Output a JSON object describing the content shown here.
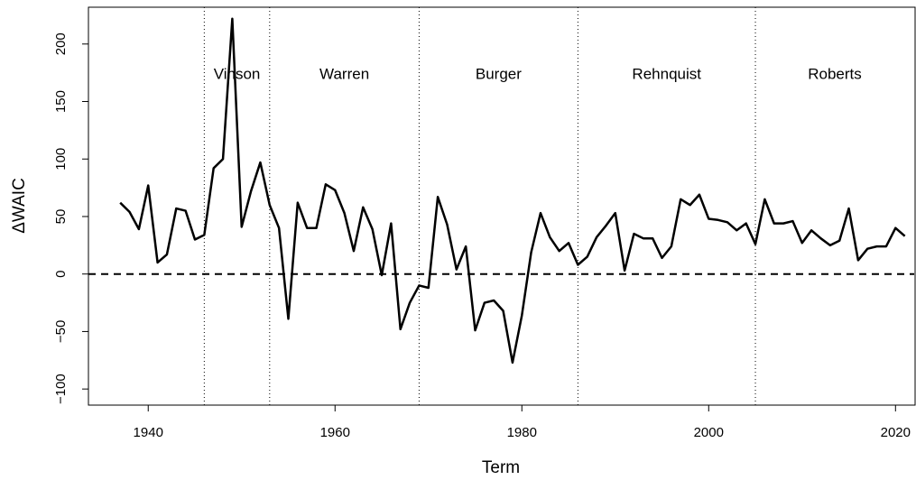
{
  "chart_data": {
    "type": "line",
    "x_label": "Term",
    "y_label": "ΔWAIC",
    "x": [
      1937,
      1938,
      1939,
      1940,
      1941,
      1942,
      1943,
      1944,
      1945,
      1946,
      1947,
      1948,
      1949,
      1950,
      1951,
      1952,
      1953,
      1954,
      1955,
      1956,
      1957,
      1958,
      1959,
      1960,
      1961,
      1962,
      1963,
      1964,
      1965,
      1966,
      1967,
      1968,
      1969,
      1970,
      1971,
      1972,
      1973,
      1974,
      1975,
      1976,
      1977,
      1978,
      1979,
      1980,
      1981,
      1982,
      1983,
      1984,
      1985,
      1986,
      1987,
      1988,
      1989,
      1990,
      1991,
      1992,
      1993,
      1994,
      1995,
      1996,
      1997,
      1998,
      1999,
      2000,
      2001,
      2002,
      2003,
      2004,
      2005,
      2006,
      2007,
      2008,
      2009,
      2010,
      2011,
      2012,
      2013,
      2014,
      2015,
      2016,
      2017,
      2018,
      2019,
      2020,
      2021
    ],
    "series": [
      {
        "color": "#000000",
        "values": [
          62,
          54,
          39,
          77,
          10,
          17,
          57,
          55,
          30,
          34,
          92,
          100,
          222,
          41,
          72,
          97,
          60,
          40,
          -39,
          62,
          40,
          40,
          78,
          73,
          53,
          20,
          58,
          39,
          -1,
          44,
          -48,
          -25,
          -10,
          -12,
          67,
          43,
          4,
          24,
          -49,
          -25,
          -23,
          -32,
          -77,
          -36,
          19,
          53,
          32,
          20,
          27,
          8,
          15,
          32,
          42,
          53,
          3,
          35,
          31,
          31,
          14,
          24,
          65,
          60,
          69,
          48,
          47,
          45,
          38,
          44,
          26,
          65,
          44,
          44,
          46,
          27,
          38,
          31,
          25,
          29,
          57,
          12,
          22,
          24,
          24,
          40,
          33
        ]
      }
    ],
    "reference_line": 0,
    "eras": [
      {
        "name": "Vinson",
        "start": 1946
      },
      {
        "name": "Warren",
        "start": 1953
      },
      {
        "name": "Burger",
        "start": 1969
      },
      {
        "name": "Rehnquist",
        "start": 1986
      },
      {
        "name": "Roberts",
        "start": 2005
      }
    ],
    "xlim": [
      1933.6,
      2022
    ],
    "ylim": [
      -114,
      232
    ],
    "xticks": [
      1940,
      1960,
      1980,
      2000,
      2020
    ],
    "yticks": [
      {
        "value": -100,
        "label": "−100"
      },
      {
        "value": -50,
        "label": "−50"
      },
      0,
      50,
      100,
      150,
      200
    ]
  }
}
